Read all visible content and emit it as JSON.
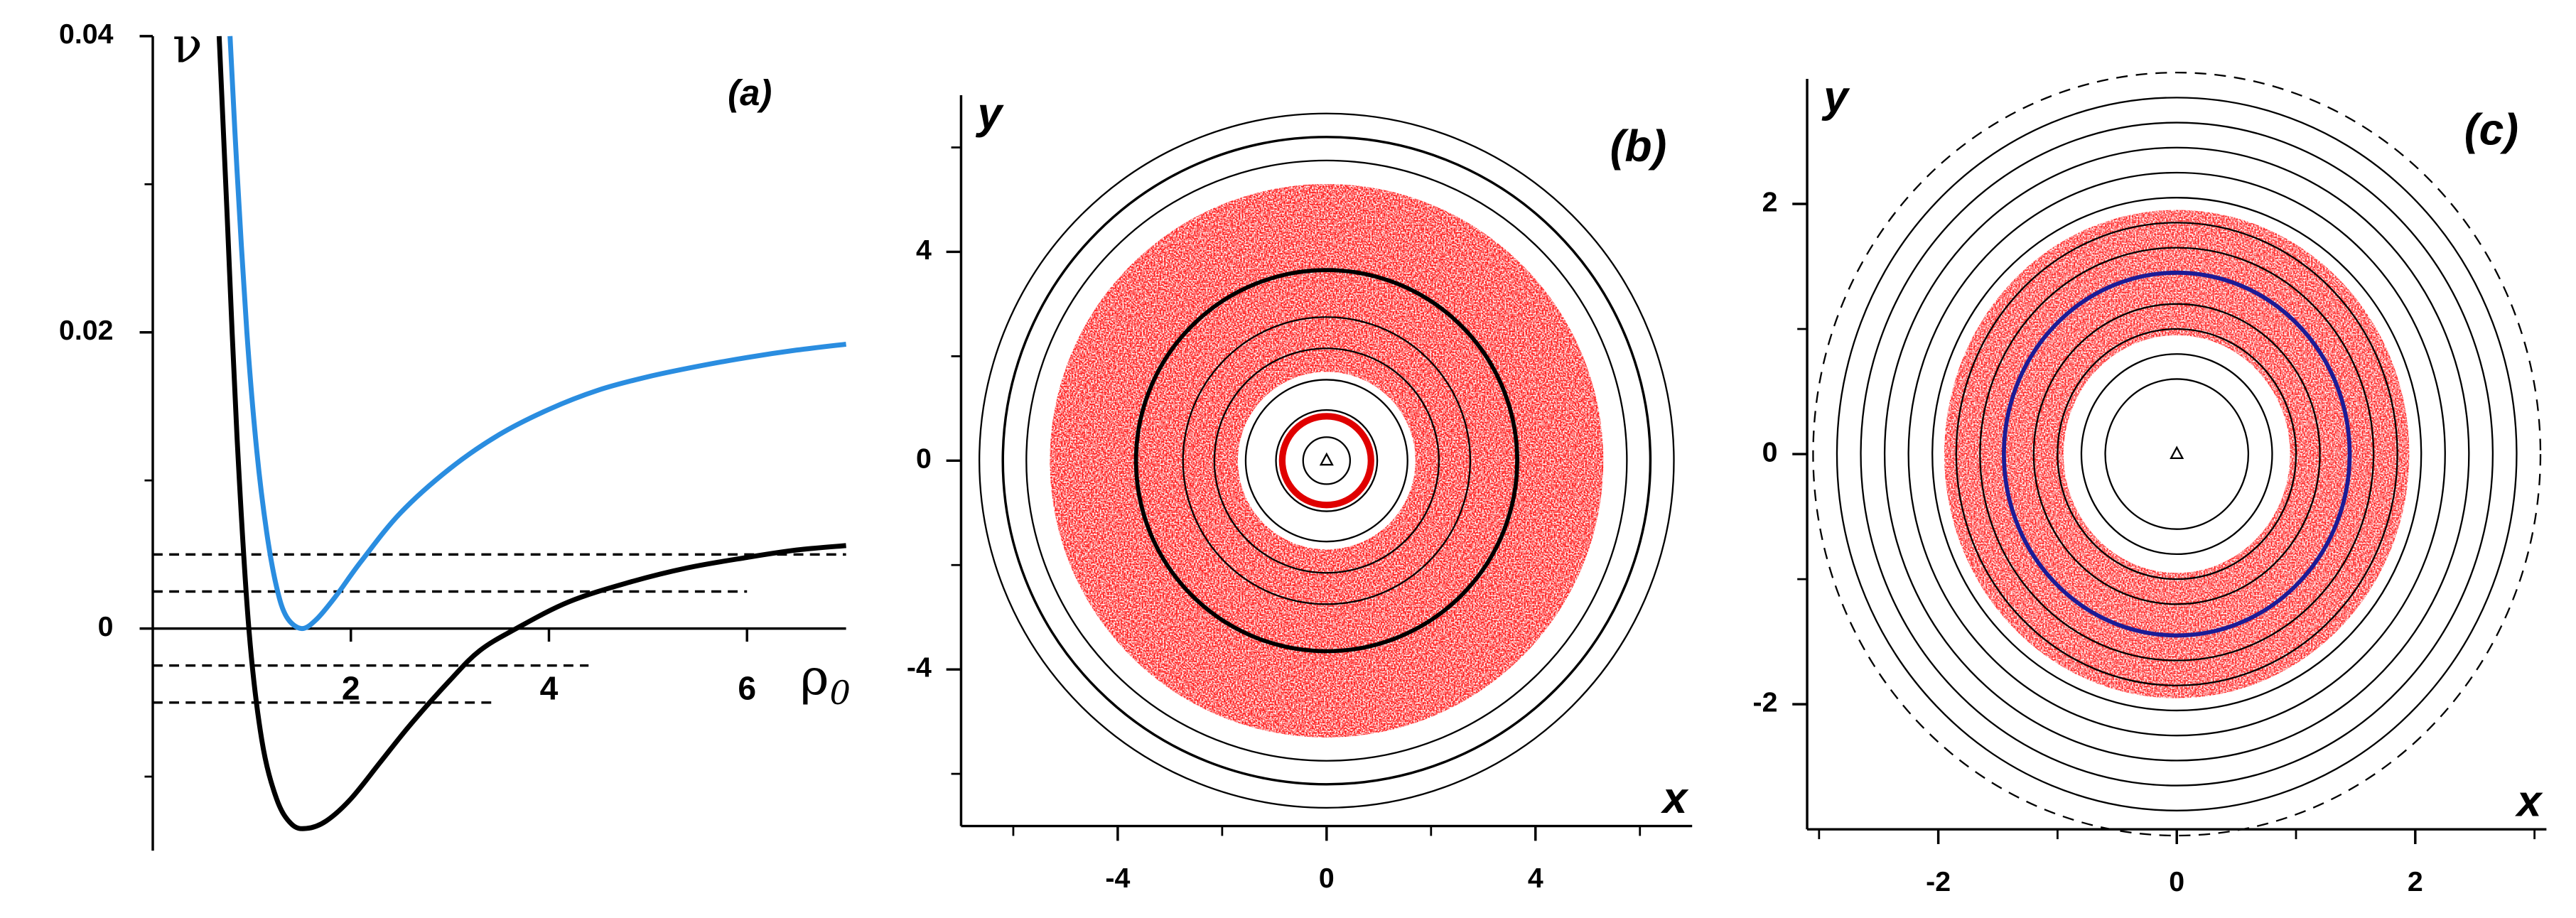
{
  "chart_data": [
    {
      "type": "line",
      "annotation": "(a)",
      "ylabel": "ν",
      "xlabel": "ρ",
      "xlabel_subscript": "0",
      "xlim": [
        0,
        7
      ],
      "ylim": [
        -0.015,
        0.04
      ],
      "xticks": [
        2,
        4,
        6
      ],
      "yticks": [
        0.04,
        0.02,
        0
      ],
      "yminorticks": [
        0.03,
        0.01,
        -0.01
      ],
      "series": [
        {
          "color": "#000000",
          "x": [
            0.67,
            0.75,
            0.85,
            0.97,
            1.1,
            1.25,
            1.4,
            1.55,
            1.75,
            2.0,
            2.3,
            2.6,
            3.0,
            3.3,
            3.67,
            4.2,
            4.8,
            5.4,
            6.0,
            6.5,
            7.0
          ],
          "values": [
            0.04,
            0.028,
            0.013,
            0,
            -0.0075,
            -0.0115,
            -0.0132,
            -0.0135,
            -0.013,
            -0.0115,
            -0.009,
            -0.0065,
            -0.0035,
            -0.0015,
            0,
            0.0018,
            0.0031,
            0.0041,
            0.0048,
            0.0053,
            0.0056
          ]
        },
        {
          "color": "#2a8de0",
          "x": [
            0.78,
            0.85,
            0.95,
            1.05,
            1.15,
            1.25,
            1.35,
            1.5,
            1.65,
            1.85,
            2.1,
            2.5,
            3.0,
            3.5,
            4.0,
            4.5,
            5.0,
            5.5,
            6.0,
            6.5,
            7.0
          ],
          "values": [
            0.04,
            0.031,
            0.02,
            0.012,
            0.0065,
            0.0028,
            0.0008,
            0,
            0.0006,
            0.0022,
            0.0045,
            0.0078,
            0.0108,
            0.0131,
            0.0148,
            0.0161,
            0.017,
            0.0177,
            0.0183,
            0.0188,
            0.0192
          ]
        }
      ],
      "reference_lines": [
        {
          "y": 0.005,
          "x_start": 0,
          "x_end": 7
        },
        {
          "y": 0.0025,
          "x_start": 0,
          "x_end": 6
        },
        {
          "y": -0.0025,
          "x_start": 0,
          "x_end": 4.4
        },
        {
          "y": -0.005,
          "x_start": 0,
          "x_end": 3.45
        }
      ]
    },
    {
      "type": "poincare",
      "annotation": "(b)",
      "xlabel": "x",
      "ylabel": "y",
      "xlim": [
        -7,
        7
      ],
      "ylim": [
        -7,
        7
      ],
      "xticks": [
        -4,
        0,
        4
      ],
      "yticks": [
        4,
        0,
        -4
      ],
      "xminorticks": [
        -6,
        -2,
        2,
        6
      ],
      "yminorticks": [
        -6,
        -2,
        2,
        6
      ],
      "chaotic_region": {
        "r_inner": 1.7,
        "r_outer": 5.3,
        "color": "#ff1a1a"
      },
      "circles": [
        {
          "r": 0.45,
          "color": "#000000",
          "width": 1
        },
        {
          "r": 0.85,
          "color": "#e00000",
          "width": 4
        },
        {
          "r": 0.97,
          "color": "#000000",
          "width": 1
        },
        {
          "r": 1.55,
          "color": "#000000",
          "width": 1
        },
        {
          "r": 2.15,
          "color": "#000000",
          "width": 1
        },
        {
          "r": 2.75,
          "color": "#000000",
          "width": 1
        },
        {
          "r": 3.65,
          "color": "#000000",
          "width": 2.5
        },
        {
          "r": 5.75,
          "color": "#000000",
          "width": 1
        },
        {
          "r": 6.2,
          "color": "#000000",
          "width": 1.5
        },
        {
          "r": 6.65,
          "color": "#000000",
          "width": 1
        }
      ]
    },
    {
      "type": "poincare",
      "annotation": "(c)",
      "xlabel": "x",
      "ylabel": "y",
      "xlim": [
        -3.1,
        3.1
      ],
      "ylim": [
        -3,
        3
      ],
      "xticks": [
        -2,
        0,
        2
      ],
      "yticks": [
        2,
        0,
        -2
      ],
      "xminorticks": [
        -3,
        -1,
        1,
        3
      ],
      "yminorticks": [
        -1,
        1
      ],
      "chaotic_region": {
        "r_inner": 0.95,
        "r_outer": 1.95,
        "color": "#ff2a2a"
      },
      "circles": [
        {
          "r": 0.6,
          "color": "#000000",
          "width": 1
        },
        {
          "r": 0.8,
          "color": "#000000",
          "width": 1
        },
        {
          "r": 1.0,
          "color": "#000000",
          "width": 1
        },
        {
          "r": 1.2,
          "color": "#000000",
          "width": 1
        },
        {
          "r": 1.45,
          "color": "#1c1c96",
          "width": 2.5
        },
        {
          "r": 1.65,
          "color": "#000000",
          "width": 1
        },
        {
          "r": 1.85,
          "color": "#000000",
          "width": 1
        },
        {
          "r": 2.05,
          "color": "#000000",
          "width": 1
        },
        {
          "r": 2.25,
          "color": "#000000",
          "width": 1
        },
        {
          "r": 2.45,
          "color": "#000000",
          "width": 1
        },
        {
          "r": 2.65,
          "color": "#000000",
          "width": 1
        },
        {
          "r": 2.85,
          "color": "#000000",
          "width": 1
        },
        {
          "r": 3.05,
          "color": "#000000",
          "width": 1,
          "dashed": true
        }
      ]
    }
  ]
}
